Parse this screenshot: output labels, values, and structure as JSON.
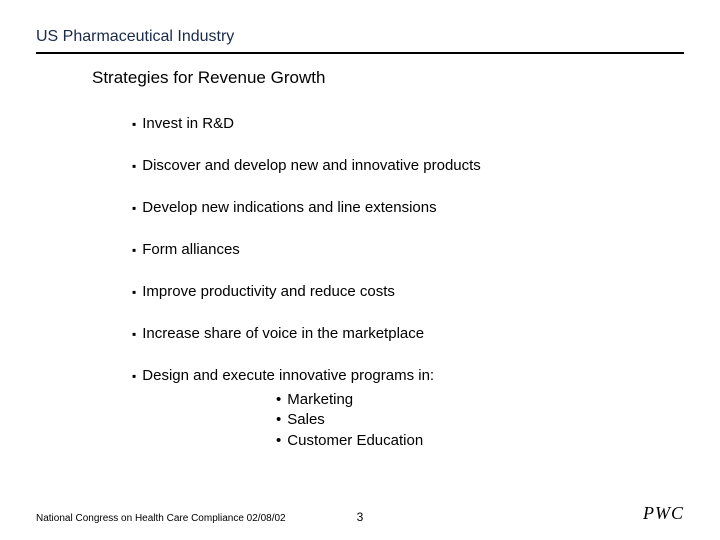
{
  "header": {
    "title": "US Pharmaceutical Industry"
  },
  "subtitle": "Strategies for Revenue Growth",
  "bullets": [
    {
      "text": "Invest in R&D"
    },
    {
      "text": "Discover and develop new and innovative products"
    },
    {
      "text": "Develop new indications and line extensions"
    },
    {
      "text": "Form alliances"
    },
    {
      "text": "Improve productivity and reduce costs"
    },
    {
      "text": "Increase share of voice in the marketplace"
    },
    {
      "text": "Design and execute innovative programs in:",
      "sub": [
        "Marketing",
        "Sales",
        "Customer Education"
      ]
    }
  ],
  "footer": {
    "left": "National Congress on Health Care Compliance 02/08/02",
    "page": "3",
    "brand": "PWC"
  },
  "style": {
    "header_color": "#1a2a4a",
    "rule_color": "#000000",
    "background": "#ffffff",
    "body_fontsize": 15,
    "title_fontsize": 16,
    "subtitle_fontsize": 17
  }
}
